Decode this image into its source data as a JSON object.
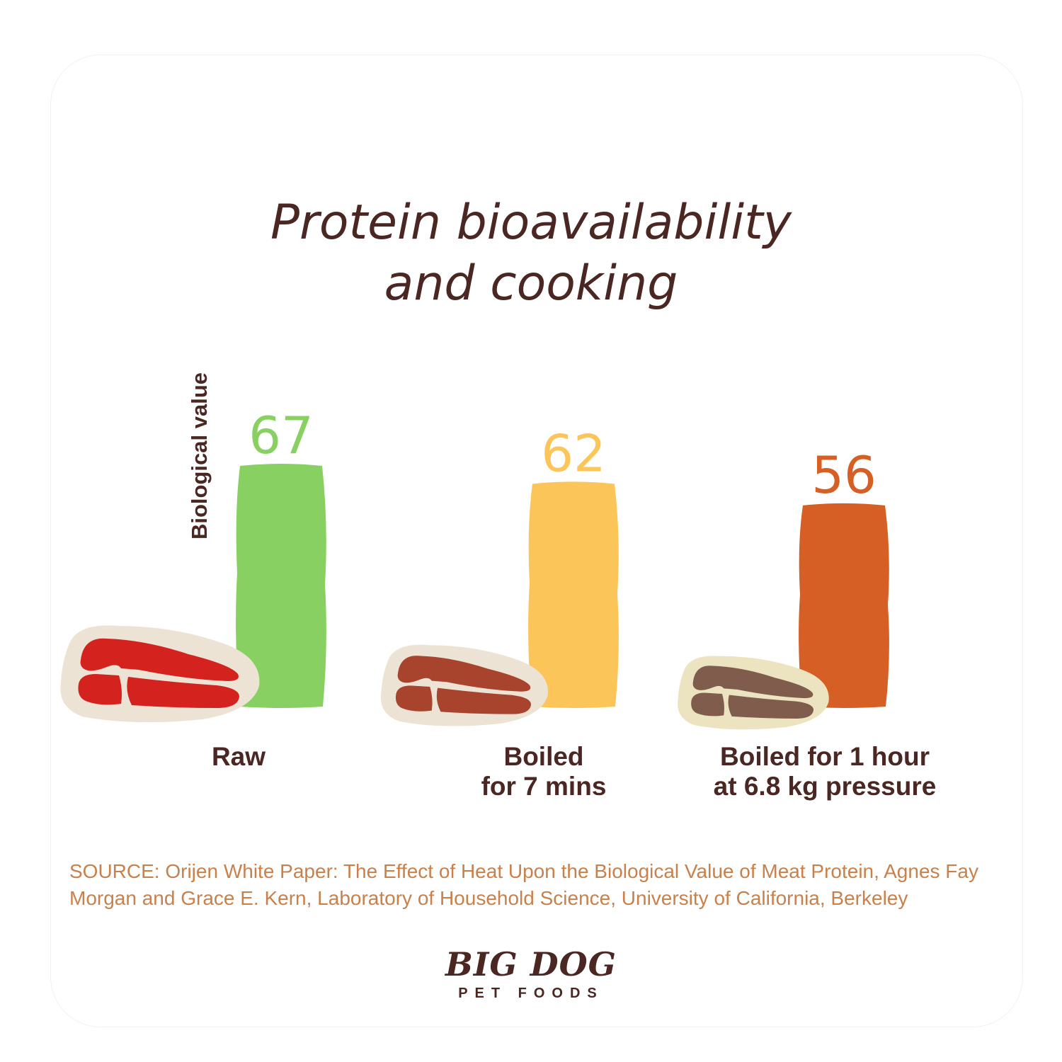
{
  "title_lines": [
    "Protein bioavailability",
    "and cooking"
  ],
  "chart_data": {
    "type": "bar",
    "title": "Protein bioavailability and cooking",
    "ylabel": "Biological value",
    "xlabel": "",
    "categories": [
      "Raw",
      "Boiled for 7 mins",
      "Boiled for 1 hour at 6.8 kg pressure"
    ],
    "category_lines": [
      [
        "Raw"
      ],
      [
        "Boiled",
        "for 7 mins"
      ],
      [
        "Boiled for 1 hour",
        "at 6.8 kg pressure"
      ]
    ],
    "values": [
      67,
      62,
      56
    ],
    "value_labels": [
      "67",
      "62",
      "56"
    ],
    "bar_colors": [
      "#88d062",
      "#fcc55a",
      "#d65f25"
    ],
    "grid": false,
    "legend": "none"
  },
  "meat_icons": [
    {
      "name": "raw-meat-icon",
      "fat_color": "#ece3d4",
      "meat_color": "#d4231f"
    },
    {
      "name": "boiled-meat-icon",
      "fat_color": "#ece3d4",
      "meat_color": "#a8442d"
    },
    {
      "name": "pressure-boiled-meat-icon",
      "fat_color": "#ece3c0",
      "meat_color": "#7f5c4c"
    }
  ],
  "source": "SOURCE: Orijen White Paper: The Effect of Heat Upon the Biological Value of Meat Protein, Agnes Fay Morgan and Grace E. Kern, Laboratory of Household Science, University of California, Berkeley",
  "logo": {
    "top": "BIG DOG",
    "bottom": "PET FOODS"
  }
}
